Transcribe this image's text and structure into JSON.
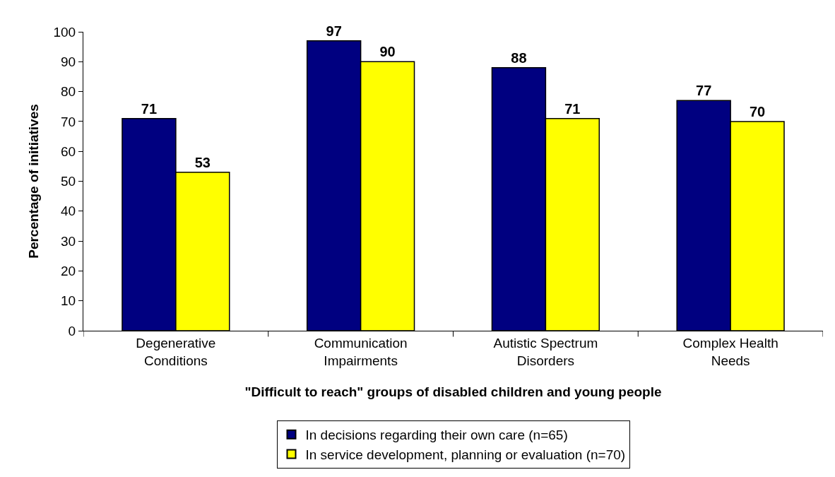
{
  "chart_data": {
    "type": "bar",
    "xlabel": "\"Difficult to reach\" groups of disabled children and young people",
    "ylabel": "Percentage of initiatives",
    "categories": [
      "Degenerative\nConditions",
      "Communication\nImpairments",
      "Autistic Spectrum\nDisorders",
      "Complex Health\nNeeds"
    ],
    "series": [
      {
        "name": "In decisions regarding their own care (n=65)",
        "color": "#000080",
        "values": [
          71,
          97,
          88,
          77
        ]
      },
      {
        "name": "In service development, planning or evaluation (n=70)",
        "color": "#ffff00",
        "values": [
          53,
          90,
          71,
          70
        ]
      }
    ],
    "ylim": [
      0,
      100
    ],
    "yticks": [
      0,
      10,
      20,
      30,
      40,
      50,
      60,
      70,
      80,
      90,
      100
    ],
    "legend": "bottom",
    "data_labels": true
  }
}
